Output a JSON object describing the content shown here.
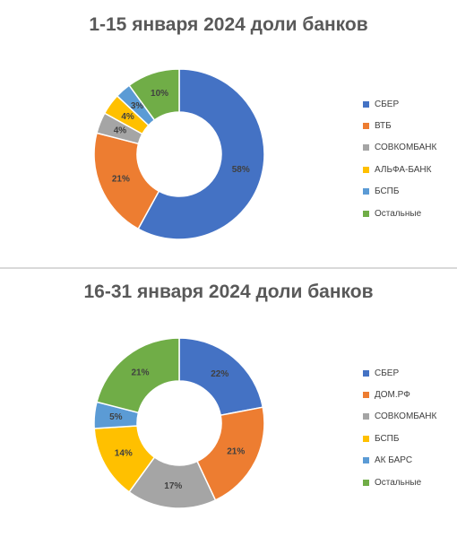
{
  "chart_data": [
    {
      "type": "donut",
      "title": "1-15 января 2024 доли банков",
      "categories": [
        "СБЕР",
        "ВТБ",
        "СОВКОМБАНК",
        "АЛЬФА-БАНК",
        "БСПБ",
        "Остальные"
      ],
      "values": [
        58,
        21,
        4,
        4,
        3,
        10
      ],
      "labels": [
        "58%",
        "21%",
        "4%",
        "4%",
        "3%",
        "10%"
      ],
      "colors": [
        "#4472c4",
        "#ed7d31",
        "#a5a5a5",
        "#ffc000",
        "#5b9bd5",
        "#70ad47"
      ],
      "unit": "%",
      "legend_position": "right"
    },
    {
      "type": "donut",
      "title": "16-31 января 2024 доли банков",
      "categories": [
        "СБЕР",
        "ДОМ.РФ",
        "СОВКОМБАНК",
        "БСПБ",
        "АК БАРС",
        "Остальные"
      ],
      "values": [
        22,
        21,
        17,
        14,
        5,
        21
      ],
      "labels": [
        "22%",
        "21%",
        "17%",
        "14%",
        "5%",
        "21%"
      ],
      "colors": [
        "#4472c4",
        "#ed7d31",
        "#a5a5a5",
        "#ffc000",
        "#5b9bd5",
        "#70ad47"
      ],
      "unit": "%",
      "legend_position": "right"
    }
  ]
}
